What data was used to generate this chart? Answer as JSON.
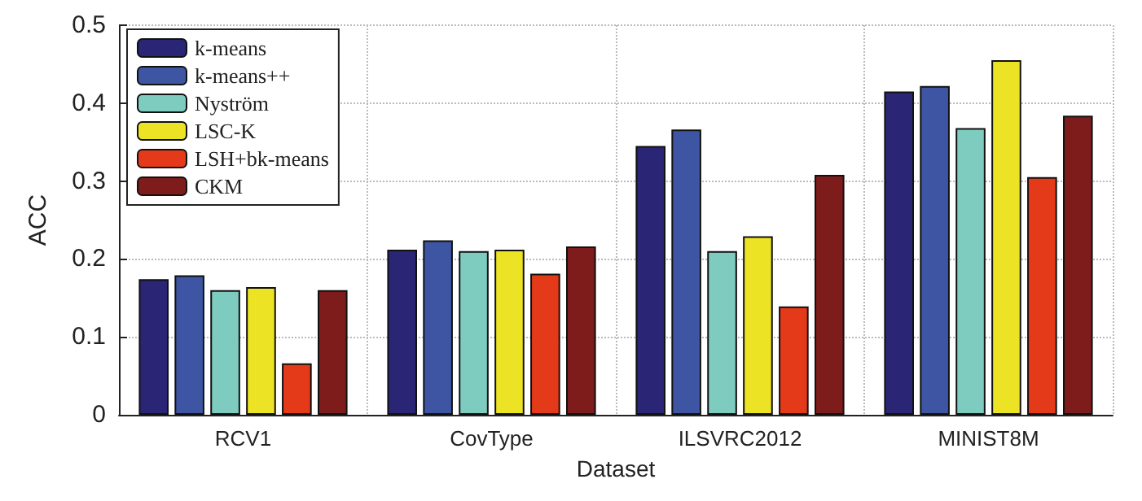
{
  "chart_data": {
    "type": "bar",
    "xlabel": "Dataset",
    "ylabel": "ACC",
    "categories": [
      "RCV1",
      "CovType",
      "ILSVRC2012",
      "MINIST8M"
    ],
    "series": [
      {
        "name": "k-means",
        "color": "#2a2574",
        "values": [
          0.174,
          0.212,
          0.345,
          0.415
        ]
      },
      {
        "name": "k-means++",
        "color": "#3d55a3",
        "values": [
          0.179,
          0.224,
          0.366,
          0.422
        ]
      },
      {
        "name": "Nyström",
        "color": "#7ecbc0",
        "values": [
          0.16,
          0.21,
          0.21,
          0.368
        ]
      },
      {
        "name": "LSC-K",
        "color": "#ede325",
        "values": [
          0.164,
          0.212,
          0.229,
          0.455
        ]
      },
      {
        "name": "LSH+bk-means",
        "color": "#e53a1a",
        "values": [
          0.066,
          0.181,
          0.139,
          0.305
        ]
      },
      {
        "name": "CKM",
        "color": "#7d1c1a",
        "values": [
          0.16,
          0.216,
          0.308,
          0.384
        ]
      }
    ],
    "ylim": [
      0,
      0.5
    ],
    "yticks": [
      0,
      0.1,
      0.2,
      0.3,
      0.4,
      0.5
    ],
    "grid": true,
    "legend": "top left"
  }
}
